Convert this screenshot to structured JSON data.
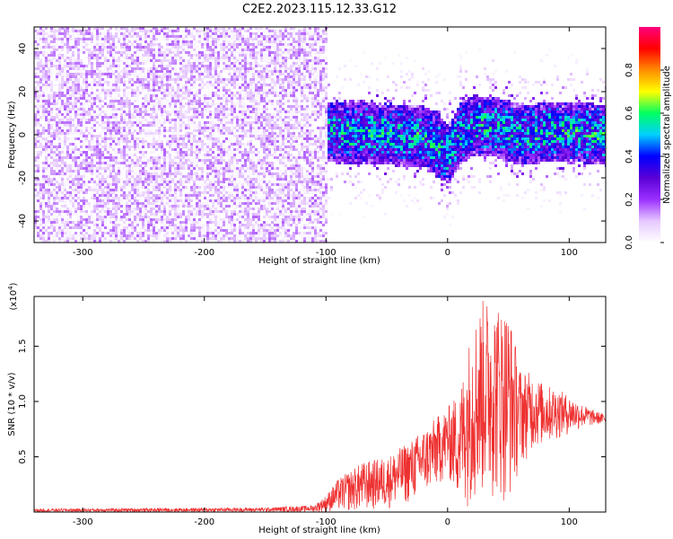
{
  "figure": {
    "title": "C2E2.2023.115.12.33.G12"
  },
  "chart_data": [
    {
      "type": "heatmap",
      "title": "C2E2.2023.115.12.33.G12",
      "xlabel": "Height of straight line (km)",
      "ylabel": "Frequency (Hz)",
      "xlim": [
        -340,
        130
      ],
      "ylim": [
        -50,
        50
      ],
      "xticks": [
        -300,
        -200,
        -100,
        0,
        100
      ],
      "xtick_labels": [
        "-300",
        "-200",
        "-100",
        "0",
        "100"
      ],
      "yticks": [
        -40,
        -20,
        0,
        20,
        40
      ],
      "ytick_labels": [
        "-40",
        "-20",
        "0",
        "20",
        "40"
      ],
      "colorbar": {
        "label": "Normalized spectral amplitude",
        "range": [
          0,
          1
        ],
        "ticks": [
          0.0,
          0.2,
          0.4,
          0.6,
          0.8
        ],
        "tick_labels": [
          "0.0",
          "0.2",
          "0.4",
          "0.6",
          "0.8"
        ],
        "colormap": [
          "#ffffff",
          "#e6c8ff",
          "#9b30ff",
          "#5a00d6",
          "#0000ff",
          "#00d0ff",
          "#00ff60",
          "#ffff00",
          "#ff8c00",
          "#ff0000",
          "#ff007f"
        ]
      },
      "ridge_center_frequency": {
        "x": [
          -100,
          -80,
          -60,
          -40,
          -20,
          -10,
          0,
          10,
          20,
          40,
          60,
          80,
          100,
          120,
          130
        ],
        "y": [
          2,
          1,
          1,
          0,
          0,
          -4,
          -9,
          2,
          5,
          4,
          0,
          2,
          2,
          1,
          0
        ]
      },
      "background_noise_region": [
        -340,
        -100
      ],
      "grid": false
    },
    {
      "type": "line",
      "xlabel": "Height of straight line (km)",
      "ylabel": "SNR (10 * v/v)",
      "y_multiplier_label": "(x10^4)",
      "xlim": [
        -340,
        130
      ],
      "ylim": [
        0,
        1.95
      ],
      "xticks": [
        -300,
        -200,
        -100,
        0,
        100
      ],
      "xtick_labels": [
        "-300",
        "-200",
        "-100",
        "0",
        "100"
      ],
      "yticks": [
        0.5,
        1.0,
        1.5
      ],
      "ytick_labels": [
        "0.5",
        "1.0",
        "1.5"
      ],
      "color": "#ee3030",
      "envelope": {
        "x": [
          -340,
          -150,
          -110,
          -100,
          -90,
          -70,
          -50,
          -30,
          -10,
          0,
          10,
          20,
          30,
          40,
          50,
          60,
          70,
          80,
          90,
          100,
          110,
          120,
          130
        ],
        "y": [
          0.03,
          0.04,
          0.06,
          0.15,
          0.3,
          0.45,
          0.5,
          0.65,
          0.85,
          0.95,
          1.1,
          1.7,
          1.95,
          1.9,
          1.85,
          1.3,
          1.25,
          1.15,
          1.12,
          1.05,
          0.98,
          0.92,
          0.88
        ]
      },
      "floor": {
        "x": [
          -340,
          -150,
          -110,
          -100,
          -90,
          -70,
          -50,
          -30,
          -10,
          0,
          10,
          20,
          30,
          40,
          50,
          60,
          70,
          80,
          90,
          100,
          110,
          120,
          130
        ],
        "y": [
          0.0,
          0.0,
          0.0,
          0.0,
          0.0,
          0.0,
          0.02,
          0.08,
          0.2,
          0.3,
          0.05,
          0.05,
          0.1,
          0.1,
          0.05,
          0.4,
          0.55,
          0.6,
          0.65,
          0.7,
          0.75,
          0.78,
          0.8
        ]
      },
      "grid": false
    }
  ]
}
